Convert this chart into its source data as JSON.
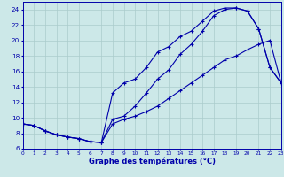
{
  "title": "Graphe des températures (°C)",
  "bg_color": "#cce8e8",
  "grid_color": "#aacccc",
  "line_color": "#0000aa",
  "xlim": [
    0,
    23
  ],
  "ylim": [
    6,
    25
  ],
  "xticks": [
    0,
    1,
    2,
    3,
    4,
    5,
    6,
    7,
    8,
    9,
    10,
    11,
    12,
    13,
    14,
    15,
    16,
    17,
    18,
    19,
    20,
    21,
    22,
    23
  ],
  "yticks": [
    6,
    8,
    10,
    12,
    14,
    16,
    18,
    20,
    22,
    24
  ],
  "curve_low_x": [
    0,
    1,
    2,
    3,
    4,
    5,
    6,
    7,
    8,
    9,
    10,
    11,
    12,
    13,
    14,
    15,
    16,
    17,
    18,
    19,
    20,
    21,
    22,
    23
  ],
  "curve_low_y": [
    9.2,
    9.0,
    8.3,
    7.8,
    7.5,
    7.3,
    6.9,
    6.8,
    9.2,
    9.8,
    10.2,
    10.8,
    11.5,
    12.5,
    13.5,
    14.5,
    15.5,
    16.5,
    17.5,
    18.0,
    18.8,
    19.5,
    20.0,
    14.5
  ],
  "curve_high_x": [
    0,
    1,
    2,
    3,
    4,
    5,
    6,
    7,
    8,
    9,
    10,
    11,
    12,
    13,
    14,
    15,
    16,
    17,
    18,
    19,
    20,
    21,
    22,
    23
  ],
  "curve_high_y": [
    9.2,
    9.0,
    8.3,
    7.8,
    7.5,
    7.3,
    6.9,
    6.8,
    13.2,
    14.5,
    15.0,
    16.5,
    18.5,
    19.2,
    20.5,
    21.2,
    22.5,
    23.8,
    24.2,
    24.2,
    23.8,
    21.5,
    16.5,
    14.5
  ],
  "curve_mid_x": [
    0,
    1,
    2,
    3,
    4,
    5,
    6,
    7,
    8,
    9,
    10,
    11,
    12,
    13,
    14,
    15,
    16,
    17,
    18,
    19,
    20,
    21,
    22,
    23
  ],
  "curve_mid_y": [
    9.2,
    9.0,
    8.3,
    7.8,
    7.5,
    7.3,
    6.9,
    6.8,
    9.8,
    10.2,
    11.5,
    13.2,
    15.0,
    16.2,
    18.2,
    19.5,
    21.2,
    23.2,
    24.0,
    24.2,
    23.8,
    21.5,
    16.5,
    14.5
  ]
}
